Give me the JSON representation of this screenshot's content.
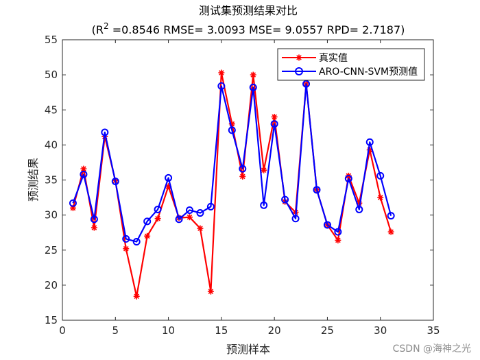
{
  "chart_data": {
    "type": "line",
    "title": "测试集预测结果对比",
    "subtitle_parts": {
      "open": "(R",
      "sup": "2",
      "rest": " =0.8546 RMSE= 3.0093 MSE= 9.0557 RPD= 2.7187)"
    },
    "xlabel": "预测样本",
    "ylabel": "预测结果",
    "xlim": [
      0,
      35
    ],
    "ylim": [
      15,
      55
    ],
    "xticks": [
      0,
      5,
      10,
      15,
      20,
      25,
      30,
      35
    ],
    "yticks": [
      15,
      20,
      25,
      30,
      35,
      40,
      45,
      50,
      55
    ],
    "grid": false,
    "legend_position": "top-right",
    "x": [
      1,
      2,
      3,
      4,
      5,
      6,
      7,
      8,
      9,
      10,
      11,
      12,
      13,
      14,
      15,
      16,
      17,
      18,
      19,
      20,
      21,
      22,
      23,
      24,
      25,
      26,
      27,
      28,
      29,
      30,
      31
    ],
    "series": [
      {
        "name": "真实值",
        "color": "#ff0000",
        "marker": "asterisk",
        "values": [
          31.0,
          36.6,
          28.2,
          41.2,
          34.9,
          25.2,
          18.4,
          27.0,
          29.5,
          34.1,
          29.6,
          29.7,
          28.1,
          19.1,
          50.3,
          43.0,
          35.5,
          50.0,
          36.4,
          44.0,
          31.9,
          30.4,
          48.7,
          33.6,
          28.6,
          26.4,
          35.6,
          31.7,
          39.3,
          32.5,
          27.6
        ]
      },
      {
        "name": "ARO-CNN-SVM预测值",
        "color": "#0000ff",
        "marker": "circle",
        "values": [
          31.7,
          35.8,
          29.4,
          41.8,
          34.8,
          26.6,
          26.2,
          29.1,
          30.8,
          35.3,
          29.4,
          30.7,
          30.3,
          31.2,
          48.4,
          42.1,
          36.6,
          48.2,
          31.4,
          43.0,
          32.2,
          29.5,
          48.7,
          33.6,
          28.6,
          27.6,
          35.2,
          30.8,
          40.4,
          35.6,
          29.9
        ]
      }
    ]
  },
  "watermark": "CSDN @海神之光"
}
